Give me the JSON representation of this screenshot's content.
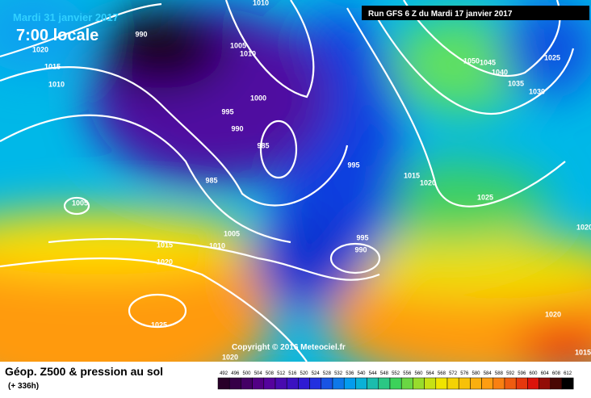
{
  "header": {
    "date": "Mardi 31 janvier 2017",
    "time": "7:00 locale",
    "run": "Run GFS 6 Z du Mardi 17 janvier 2017",
    "copyright": "Copyright © 2016 Meteociel.fr"
  },
  "footer": {
    "title": "Géop. Z500 & pression au sol",
    "lead": "(+ 336h)"
  },
  "legend": {
    "ticks": [
      492,
      496,
      500,
      504,
      508,
      512,
      516,
      520,
      524,
      528,
      532,
      536,
      540,
      544,
      548,
      552,
      556,
      560,
      564,
      568,
      572,
      576,
      580,
      584,
      588,
      592,
      596,
      600,
      604,
      608,
      612
    ]
  },
  "isobars": [
    "990",
    "1010",
    "1020",
    "1015",
    "1010",
    "1005",
    "1010",
    "1000",
    "995",
    "990",
    "985",
    "985",
    "995",
    "1005",
    "1005",
    "1015",
    "1010",
    "1020",
    "995",
    "990",
    "1015",
    "1020",
    "1025",
    "1050",
    "1045",
    "1040",
    "1035",
    "1030",
    "1025",
    "1020",
    "1025",
    "1020",
    "1020",
    "1015"
  ]
}
